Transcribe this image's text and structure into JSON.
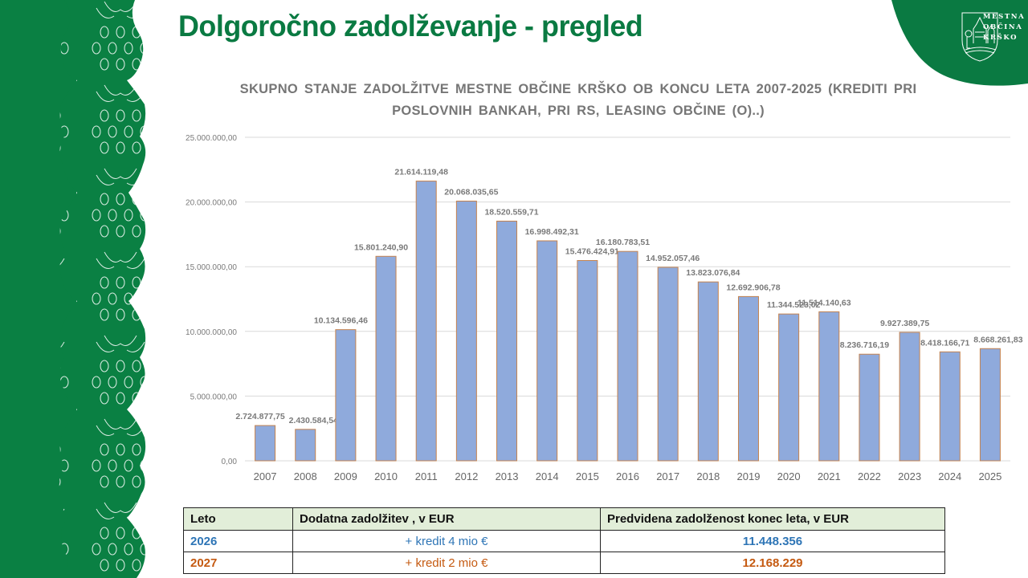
{
  "slide": {
    "title": "Dolgoročno zadolževanje - pregled",
    "logo": {
      "lines": [
        "MESTNA",
        "OBČINA",
        "KRŠKO"
      ]
    },
    "colors": {
      "brand_green": "#0a7a42",
      "bar_fill": "#8faadc",
      "bar_border": "#c5834f",
      "header_fill": "#e2eed9",
      "row_2026": "#2e75b6",
      "row_2027": "#c55a11"
    }
  },
  "chart": {
    "title_line1": "SKUPNO STANJE ZADOLŽITVE MESTNE OBČINE KRŠKO OB KONCU LETA 2007-2025 (KREDITI PRI",
    "title_line2": "POSLOVNIH BANKAH, PRI RS, LEASING OBČINE (O)..)"
  },
  "chart_data": {
    "type": "bar",
    "title": "SKUPNO STANJE ZADOLŽITVE MESTNE OBČINE KRŠKO OB KONCU LETA 2007-2025 (KREDITI PRI POSLOVNIH BANKAH, PRI RS, LEASING OBČINE (O)..)",
    "xlabel": "",
    "ylabel": "",
    "ylim": [
      0,
      25000000
    ],
    "yticks": [
      "0,00",
      "5.000.000,00",
      "10.000.000,00",
      "15.000.000,00",
      "20.000.000,00",
      "25.000.000,00"
    ],
    "grid": true,
    "legend": "none",
    "categories": [
      "2007",
      "2008",
      "2009",
      "2010",
      "2011",
      "2012",
      "2013",
      "2014",
      "2015",
      "2016",
      "2017",
      "2018",
      "2019",
      "2020",
      "2021",
      "2022",
      "2023",
      "2024",
      "2025"
    ],
    "values": [
      2724877.75,
      2430584.54,
      10134596.46,
      15801240.9,
      21614119.48,
      20068035.65,
      18520559.71,
      16998492.31,
      15476424.91,
      16180783.51,
      14952057.46,
      13823076.84,
      12692906.78,
      11344523.02,
      11514140.63,
      8236716.19,
      9927389.75,
      8418166.71,
      8668261.83
    ],
    "labels": [
      "2.724.877,75",
      "2.430.584,54",
      "10.134.596,46",
      "15.801.240,90",
      "21.614.119,48",
      "20.068.035,65",
      "18.520.559,71",
      "16.998.492,31",
      "15.476.424,91",
      "16.180.783,51",
      "14.952.057,46",
      "13.823.076,84",
      "12.692.906,78",
      "11.344.523,02",
      "11.514.140,63",
      "8.236.716,19",
      "9.927.389,75",
      "8.418.166,71",
      "8.668.261,83"
    ]
  },
  "table": {
    "headers": [
      "Leto",
      "Dodatna zadolžitev , v EUR",
      "Predvidena zadolženost konec leta, v EUR"
    ],
    "rows": [
      {
        "year": "2026",
        "additional": "+ kredit 4 mio €",
        "projected": "11.448.356"
      },
      {
        "year": "2027",
        "additional": "+ kredit 2 mio €",
        "projected": "12.168.229"
      }
    ]
  }
}
